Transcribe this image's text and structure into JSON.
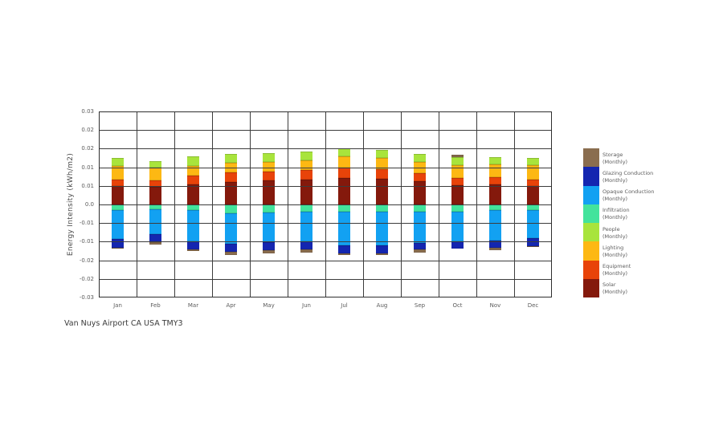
{
  "canvas": {
    "background": "#ffffff"
  },
  "chart_data": {
    "type": "bar",
    "stacked": true,
    "title": "Van Nuys Airport CA USA TMY3",
    "ylabel": "Energy Intensity (kWh/m2)",
    "xlabel": "",
    "ylim": [
      -0.03,
      0.03
    ],
    "ytick_labels": [
      "0.03",
      "0.02",
      "0.02",
      "0.01",
      "0.01",
      "0.0",
      "-0.01",
      "-0.01",
      "-0.02",
      "-0.02",
      "-0.03"
    ],
    "grid": true,
    "legend_position": "right",
    "categories": [
      "Jan",
      "Feb",
      "Mar",
      "Apr",
      "May",
      "Jun",
      "Jul",
      "Aug",
      "Sep",
      "Oct",
      "Nov",
      "Dec"
    ],
    "series": [
      {
        "name": "Solar (Monthly)",
        "color": "#84190c",
        "values": [
          0.0059,
          0.0056,
          0.0065,
          0.0073,
          0.0078,
          0.008,
          0.0085,
          0.0082,
          0.0076,
          0.0063,
          0.0065,
          0.0059
        ]
      },
      {
        "name": "Equipment (Monthly)",
        "color": "#e84309",
        "values": [
          0.0022,
          0.0022,
          0.0028,
          0.0031,
          0.0029,
          0.003,
          0.0035,
          0.0033,
          0.0026,
          0.0022,
          0.0024,
          0.0022
        ]
      },
      {
        "name": "Lighting (Monthly)",
        "color": "#fdb813",
        "values": [
          0.0043,
          0.0041,
          0.0032,
          0.003,
          0.0031,
          0.0032,
          0.0034,
          0.0035,
          0.0035,
          0.0041,
          0.0041,
          0.0047
        ]
      },
      {
        "name": "People (Monthly)",
        "color": "#a8e43c",
        "values": [
          0.0026,
          0.002,
          0.003,
          0.0029,
          0.0028,
          0.0028,
          0.0026,
          0.0026,
          0.0026,
          0.0026,
          0.0022,
          0.0022
        ]
      },
      {
        "name": "Infiltration (Monthly)",
        "color": "#43e39c",
        "values": [
          -0.0019,
          -0.0016,
          -0.0019,
          -0.0028,
          -0.0025,
          -0.0023,
          -0.0023,
          -0.0023,
          -0.0022,
          -0.0022,
          -0.0019,
          -0.0017
        ]
      },
      {
        "name": "Opaque Conduction (Monthly)",
        "color": "#12a1f2",
        "values": [
          -0.0091,
          -0.008,
          -0.0101,
          -0.0099,
          -0.0097,
          -0.0097,
          -0.011,
          -0.011,
          -0.0101,
          -0.0097,
          -0.0097,
          -0.0092
        ]
      },
      {
        "name": "Glazing Conduction (Monthly)",
        "color": "#1426b0",
        "values": [
          -0.003,
          -0.0026,
          -0.0024,
          -0.0026,
          -0.0026,
          -0.0026,
          -0.0026,
          -0.0026,
          -0.0022,
          -0.0024,
          -0.0024,
          -0.0026
        ]
      },
      {
        "name": "Storage (Monthly)",
        "color": "#8a6d4f",
        "values": [
          -0.0003,
          -0.0007,
          -0.0007,
          -0.0009,
          -0.0009,
          -0.0009,
          -0.0004,
          -0.0004,
          -0.0009,
          0.0009,
          -0.0007,
          -0.0003
        ]
      }
    ],
    "legend": [
      {
        "label": "Storage",
        "sublabel": "(Monthly)",
        "color": "#8a6d4f"
      },
      {
        "label": "Glazing Conduction",
        "sublabel": "(Monthly)",
        "color": "#1426b0"
      },
      {
        "label": "Opaque Conduction",
        "sublabel": "(Monthly)",
        "color": "#12a1f2"
      },
      {
        "label": "Infiltration",
        "sublabel": "(Monthly)",
        "color": "#43e39c"
      },
      {
        "label": "People",
        "sublabel": "(Monthly)",
        "color": "#a8e43c"
      },
      {
        "label": "Lighting",
        "sublabel": "(Monthly)",
        "color": "#fdb813"
      },
      {
        "label": "Equipment",
        "sublabel": "(Monthly)",
        "color": "#e84309"
      },
      {
        "label": "Solar",
        "sublabel": "(Monthly)",
        "color": "#84190c"
      }
    ]
  }
}
